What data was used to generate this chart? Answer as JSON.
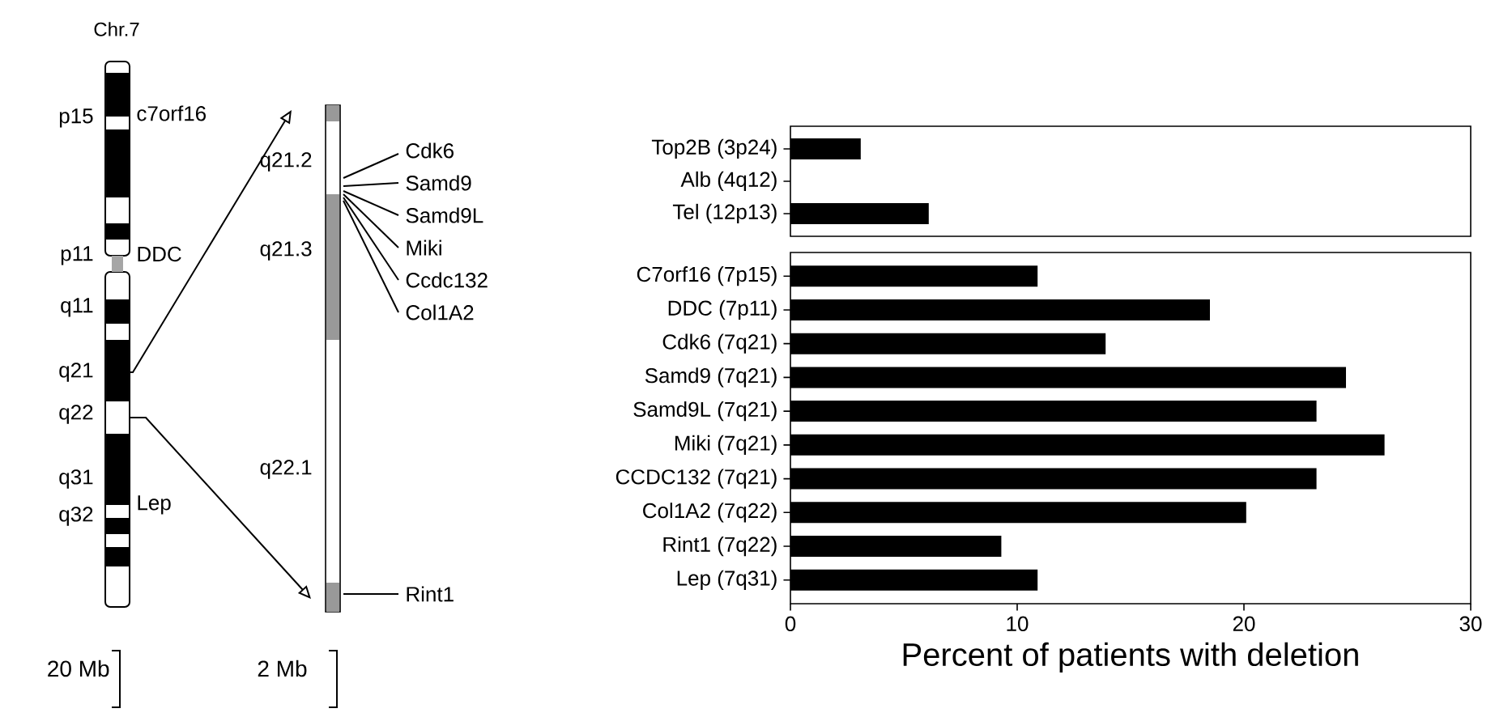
{
  "chart_data": [
    {
      "type": "other",
      "annotations": [
        "Chr.7",
        "p15",
        "p11",
        "q11",
        "q21",
        "q22",
        "q31",
        "q32",
        "c7orf16",
        "DDC",
        "Lep",
        "q21.2",
        "q21.3",
        "q22.1",
        "Cdk6",
        "Samd9",
        "Samd9L",
        "Miki",
        "Ccdc132",
        "Col1A2",
        "Rint1",
        "20 Mb",
        "2 Mb"
      ]
    },
    {
      "type": "bar",
      "orientation": "horizontal",
      "categories": [
        "Top2B (3p24)",
        "Alb (4q12)",
        "Tel (12p13)"
      ],
      "values": [
        3.1,
        0,
        6.1
      ],
      "color": "#000000",
      "xlim": [
        0,
        30
      ],
      "tick_labels": "y"
    },
    {
      "type": "bar",
      "orientation": "horizontal",
      "categories": [
        "C7orf16 (7p15)",
        "DDC (7p11)",
        "Cdk6 (7q21)",
        "Samd9 (7q21)",
        "Samd9L (7q21)",
        "Miki (7q21)",
        "CCDC132 (7q21)",
        "Col1A2 (7q22)",
        "Rint1 (7q22)",
        "Lep (7q31)"
      ],
      "values": [
        10.9,
        18.5,
        13.9,
        24.5,
        23.2,
        26.2,
        23.2,
        20.1,
        9.3,
        10.9
      ],
      "color": "#000000",
      "xlim": [
        0,
        30
      ],
      "xticks": [
        0,
        10,
        20,
        30
      ],
      "xlabel": "Percent of patients with deletion"
    }
  ]
}
